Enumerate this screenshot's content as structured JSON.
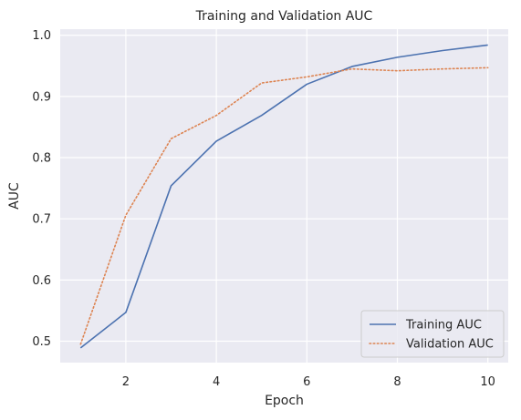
{
  "chart_data": {
    "type": "line",
    "title": "Training and Validation AUC",
    "xlabel": "Epoch",
    "ylabel": "AUC",
    "x": [
      1,
      2,
      3,
      4,
      5,
      6,
      7,
      8,
      9,
      10
    ],
    "xlim": [
      0.55,
      10.45
    ],
    "ylim": [
      0.465,
      1.01
    ],
    "xticks": [
      2,
      4,
      6,
      8,
      10
    ],
    "yticks": [
      0.5,
      0.6,
      0.7,
      0.8,
      0.9,
      1.0
    ],
    "xtick_labels": [
      "2",
      "4",
      "6",
      "8",
      "10"
    ],
    "ytick_labels": [
      "0.5",
      "0.6",
      "0.7",
      "0.8",
      "0.9",
      "1.0"
    ],
    "grid": true,
    "legend_position": "lower-right",
    "series": [
      {
        "name": "Training AUC",
        "values": [
          0.489,
          0.547,
          0.754,
          0.827,
          0.869,
          0.92,
          0.949,
          0.964,
          0.975,
          0.984
        ],
        "color": "#4c72b0",
        "style": "solid"
      },
      {
        "name": "Validation AUC",
        "values": [
          0.495,
          0.706,
          0.831,
          0.869,
          0.922,
          0.932,
          0.945,
          0.942,
          0.945,
          0.947
        ],
        "color": "#dd8452",
        "style": "dotted"
      }
    ],
    "background_color": "#eaeaf2",
    "grid_color": "#ffffff"
  }
}
